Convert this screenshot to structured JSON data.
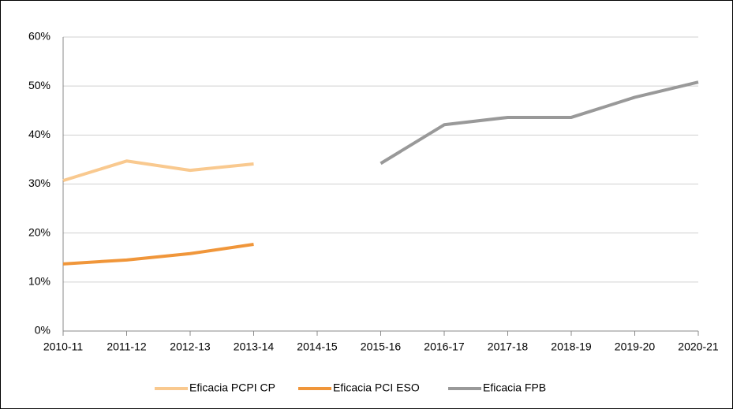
{
  "chart_data": {
    "type": "line",
    "categories": [
      "2010-11",
      "2011-12",
      "2012-13",
      "2013-14",
      "2014-15",
      "2015-16",
      "2016-17",
      "2017-18",
      "2018-19",
      "2019-20",
      "2020-21"
    ],
    "series": [
      {
        "name": "Eficacia PCPI CP",
        "color": "#f9c98f",
        "values": [
          30.7,
          34.7,
          32.8,
          34.1,
          null,
          null,
          null,
          null,
          null,
          null,
          null
        ]
      },
      {
        "name": "Eficacia PCI ESO",
        "color": "#f0963a",
        "values": [
          13.7,
          14.5,
          15.8,
          17.7,
          null,
          null,
          null,
          null,
          null,
          null,
          null
        ]
      },
      {
        "name": "Eficacia FPB",
        "color": "#999999",
        "values": [
          null,
          null,
          null,
          null,
          null,
          34.2,
          42.1,
          43.6,
          43.6,
          47.7,
          50.8
        ]
      }
    ],
    "ylim": [
      0,
      60
    ],
    "yticks": [
      {
        "value": 0,
        "label": "0%"
      },
      {
        "value": 10,
        "label": "10%"
      },
      {
        "value": 20,
        "label": "20%"
      },
      {
        "value": 30,
        "label": "30%"
      },
      {
        "value": 40,
        "label": "40%"
      },
      {
        "value": 50,
        "label": "50%"
      },
      {
        "value": 60,
        "label": "60%"
      }
    ],
    "grid": true,
    "legend": "bottom"
  }
}
